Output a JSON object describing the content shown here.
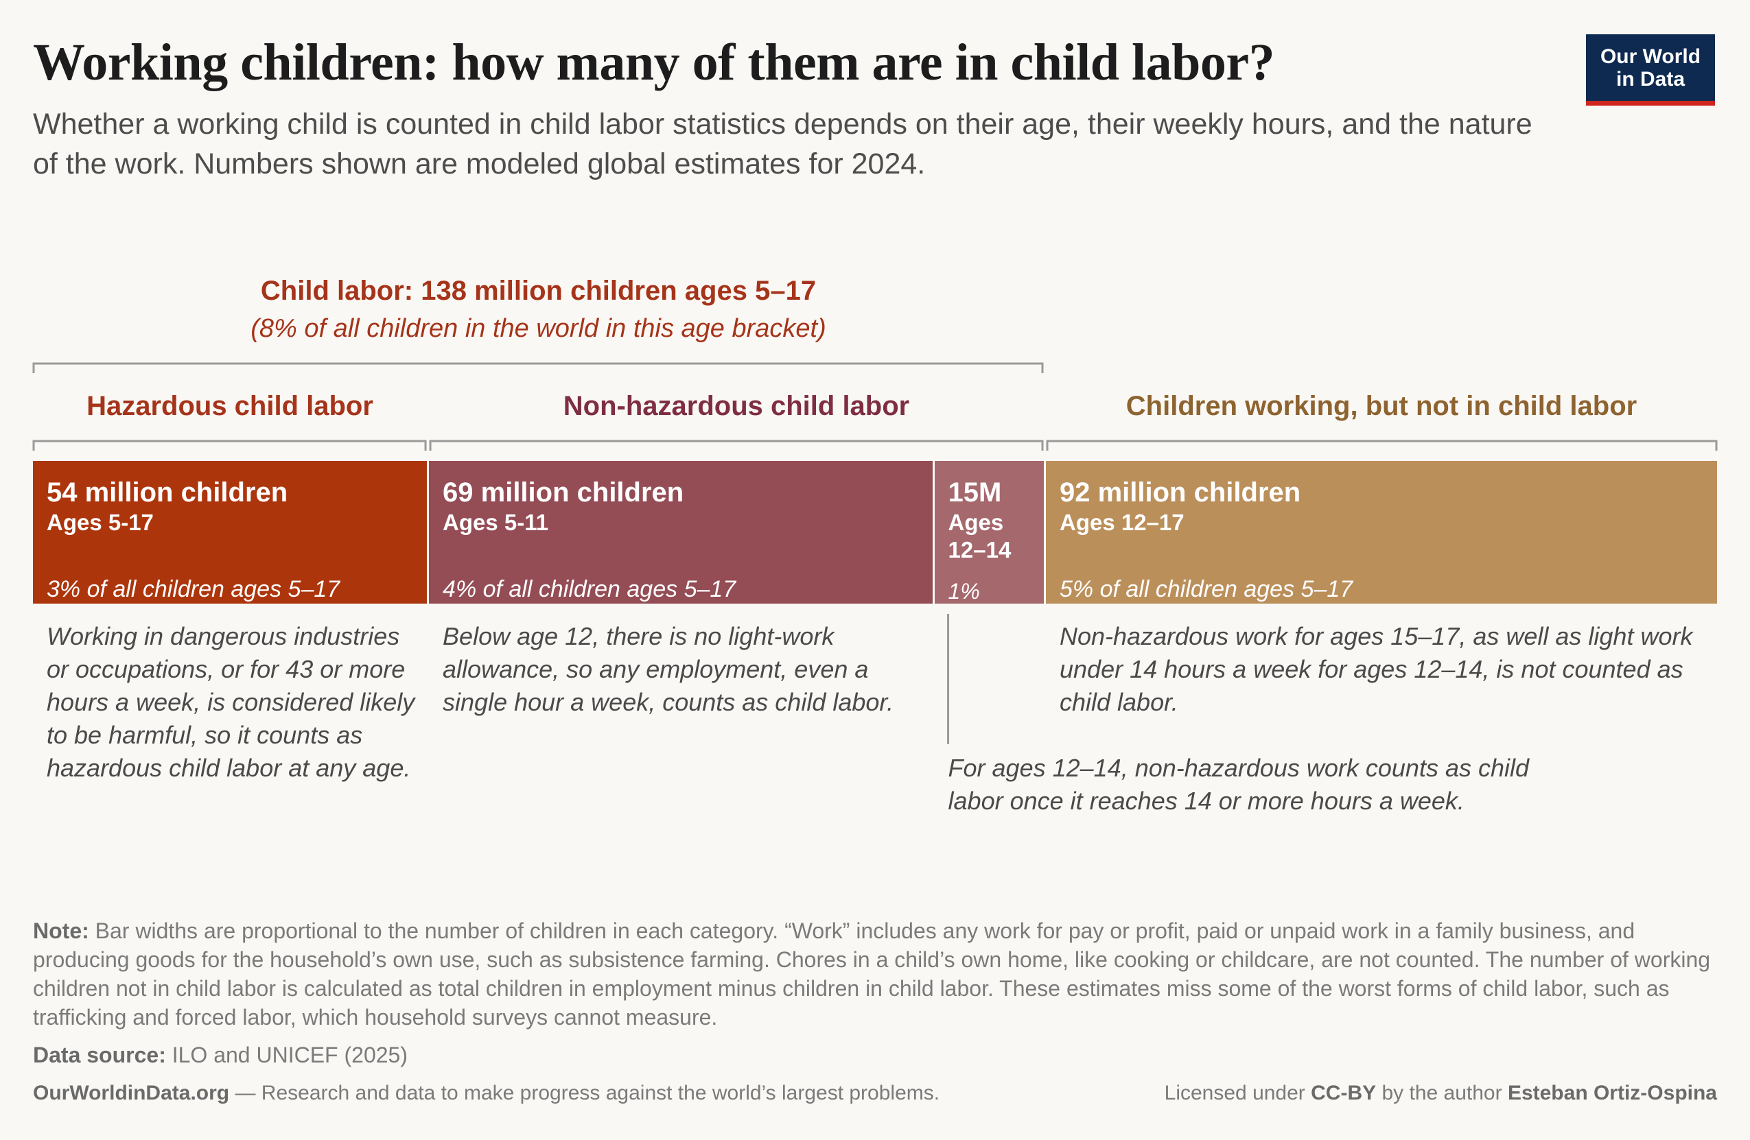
{
  "title": "Working children: how many of them are in child labor?",
  "subtitle": "Whether a working child is counted in child labor statistics depends on their age, their weekly hours, and the nature of the work. Numbers shown are modeled global estimates for 2024.",
  "logo": {
    "line1": "Our World",
    "line2": "in Data",
    "bg_color": "#0e2a50",
    "stripe_color": "#ce261e"
  },
  "chart_data": {
    "type": "bar",
    "orientation": "horizontal-stacked",
    "unit": "million children",
    "group": {
      "title": "Child labor: 138 million children ages 5–17",
      "subtitle": "(8% of all children in the world in this age bracket)"
    },
    "category_labels": {
      "hazardous": "Hazardous child labor",
      "nonhazardous": "Non-hazardous child labor",
      "notlabor": "Children working, but not in child labor"
    },
    "segments": [
      {
        "value": 54,
        "title": "54 million children",
        "age": "Ages 5-17",
        "share": "3% of all children ages 5–17",
        "color": "#ad350c"
      },
      {
        "value": 69,
        "title": "69 million children",
        "age": "Ages 5-11",
        "share": "4% of all children ages 5–17",
        "color": "#944c55"
      },
      {
        "value": 15,
        "title": "15M",
        "age_line1": "Ages",
        "age_line2": "12–14",
        "share": "1%",
        "color": "#a5686d"
      },
      {
        "value": 92,
        "title": "92 million children",
        "age": "Ages 12–17",
        "share": "5% of all children ages 5–17",
        "color": "#bb8f5a"
      }
    ],
    "category_colors": {
      "hazardous": "#a5341a",
      "nonhazardous": "#7f2e42",
      "notlabor": "#8d6330"
    },
    "bracket_color": "#9a9a9a",
    "annotations": {
      "hazardous": "Working in dangerous industries or occupations, or for 43 or more hours a week, is considered likely to be harmful, so it counts as hazardous child labor at any age.",
      "under12": "Below age 12, there is no light-work allowance, so any employment, even a single hour a week, counts as child labor.",
      "ages12_14": "For ages 12–14, non-hazardous work counts as child labor once it reaches 14 or more hours a week.",
      "notlabor": "Non-hazardous work for ages 15–17, as well as light work under 14 hours a week for ages 12–14, is not counted as child labor."
    }
  },
  "footnote": {
    "label": "Note:",
    "text": "Bar widths are proportional to the number of children in each category. “Work” includes any work for pay or profit, paid or unpaid work in a family business, and producing goods for the household’s own use, such as subsistence farming. Chores in a child’s own home, like cooking or childcare, are not counted. The number of working children not in child labor is calculated as total children in employment minus children in child labor.  These estimates miss some of the worst forms of child labor, such as trafficking and forced labor, which household surveys cannot measure."
  },
  "source": {
    "label": "Data source:",
    "text": "ILO and UNICEF (2025)"
  },
  "footer": {
    "site": "OurWorldinData.org",
    "tagline": " — Research and data to make progress against the world’s largest problems.",
    "license_prefix": "Licensed under ",
    "license": "CC-BY",
    "author_prefix": " by the author ",
    "author": "Esteban Ortiz-Ospina"
  }
}
